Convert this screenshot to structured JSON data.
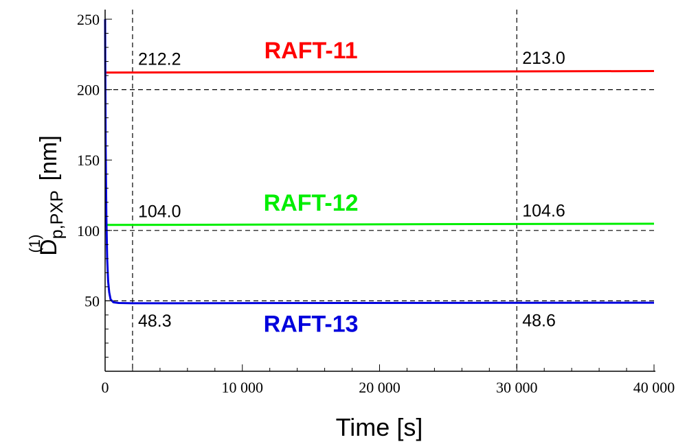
{
  "chart_data": {
    "type": "line",
    "xlabel": "Time [s]",
    "ylabel": {
      "main": "D",
      "superscript": "(1)",
      "subscript": "p,PXP",
      "unit": "[nm]"
    },
    "xlim": [
      0,
      40000
    ],
    "ylim": [
      0,
      250
    ],
    "x_ticks": [
      {
        "value": 0,
        "label": "0"
      },
      {
        "value": 10000,
        "label": "10 000"
      },
      {
        "value": 20000,
        "label": "20 000"
      },
      {
        "value": 30000,
        "label": "30 000"
      },
      {
        "value": 40000,
        "label": "40 000"
      }
    ],
    "y_ticks": [
      {
        "value": 50,
        "label": "50"
      },
      {
        "value": 100,
        "label": "100"
      },
      {
        "value": 150,
        "label": "150"
      },
      {
        "value": 200,
        "label": "200"
      },
      {
        "value": 250,
        "label": "250"
      }
    ],
    "reference_lines": {
      "horizontal": [
        50,
        100,
        200
      ],
      "vertical": [
        2000,
        30000
      ]
    },
    "series": [
      {
        "name": "RAFT-11",
        "color": "#ff0000",
        "x": [
          0,
          40000
        ],
        "y": [
          212.1,
          213.2
        ],
        "annotations": [
          {
            "x": 2000,
            "text": "212.2"
          },
          {
            "x": 30000,
            "text": "213.0"
          }
        ]
      },
      {
        "name": "RAFT-12",
        "color": "#00ee00",
        "x": [
          0,
          40000
        ],
        "y": [
          103.9,
          104.8
        ],
        "annotations": [
          {
            "x": 2000,
            "text": "104.0"
          },
          {
            "x": 30000,
            "text": "104.6"
          }
        ]
      },
      {
        "name": "RAFT-13",
        "color": "#0000dd",
        "x": [
          0,
          10,
          40,
          90,
          150,
          220,
          300,
          400,
          600,
          1000,
          2000,
          30000,
          40000
        ],
        "y": [
          250,
          220,
          160,
          110,
          80,
          64,
          56,
          51,
          49,
          48.5,
          48.3,
          48.6,
          48.7
        ],
        "annotations": [
          {
            "x": 2000,
            "text": "48.3"
          },
          {
            "x": 30000,
            "text": "48.6"
          }
        ]
      }
    ]
  }
}
